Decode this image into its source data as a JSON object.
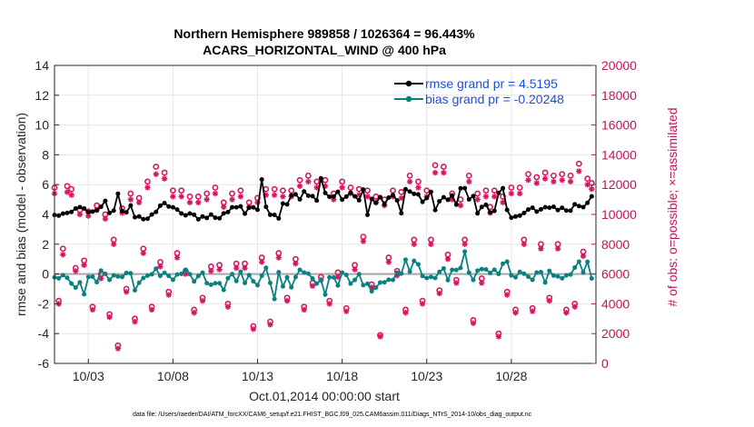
{
  "chart_data": {
    "type": "line",
    "title": "Northern Hemisphere 989858 / 1026364 = 96.443%",
    "subtitle": "ACARS_HORIZONTAL_WIND @ 400 hPa",
    "xlabel": "Oct.01,2014 00:00:00 start",
    "ylabel": "rmse and bias (model - observation)",
    "y2label": "# of obs: o=possible; ×=assimilated",
    "xlim": [
      1,
      33
    ],
    "ylim": [
      -6,
      14
    ],
    "y2lim": [
      0,
      20000
    ],
    "x_ticks": [
      3,
      8,
      13,
      18,
      23,
      28
    ],
    "x_tick_labels": [
      "10/03",
      "10/08",
      "10/13",
      "10/18",
      "10/23",
      "10/28"
    ],
    "y_ticks": [
      "-6",
      "-4",
      "-2",
      "0",
      "2",
      "4",
      "6",
      "8",
      "10",
      "12",
      "14"
    ],
    "y2_ticks": [
      "0",
      "2000",
      "4000",
      "6000",
      "8000",
      "10000",
      "12000",
      "14000",
      "16000",
      "18000",
      "20000"
    ],
    "grid": true,
    "legend": [
      "rmse grand pr = 4.5195",
      "bias grand pr = -0.20248"
    ],
    "legend_position": "top-right",
    "colors": {
      "rmse": "#000000",
      "bias": "#0a8080",
      "obs": "#d6165f",
      "zero_line": "#a6a6a6",
      "axis_left": "#262626",
      "axis_right": "#c0145a",
      "legend_text": "#1a4fe0"
    },
    "series": [
      {
        "name": "rmse",
        "x": [
          1.0,
          1.25,
          1.5,
          1.75,
          2.0,
          2.25,
          2.5,
          2.75,
          3.0,
          3.25,
          3.5,
          3.75,
          4.0,
          4.25,
          4.5,
          4.75,
          5.0,
          5.25,
          5.5,
          5.75,
          6.0,
          6.25,
          6.5,
          6.75,
          7.0,
          7.25,
          7.5,
          7.75,
          8.0,
          8.25,
          8.5,
          8.75,
          9.0,
          9.25,
          9.5,
          9.75,
          10.0,
          10.25,
          10.5,
          10.75,
          11.0,
          11.25,
          11.5,
          11.75,
          12.0,
          12.25,
          12.5,
          12.75,
          13.0,
          13.25,
          13.5,
          13.75,
          14.0,
          14.25,
          14.5,
          14.75,
          15.0,
          15.25,
          15.5,
          15.75,
          16.0,
          16.25,
          16.5,
          16.75,
          17.0,
          17.25,
          17.5,
          17.75,
          18.0,
          18.25,
          18.5,
          18.75,
          19.0,
          19.25,
          19.5,
          19.75,
          20.0,
          20.25,
          20.5,
          20.75,
          21.0,
          21.25,
          21.5,
          21.75,
          22.0,
          22.25,
          22.5,
          22.75,
          23.0,
          23.25,
          23.5,
          23.75,
          24.0,
          24.25,
          24.5,
          24.75,
          25.0,
          25.25,
          25.5,
          25.75,
          26.0,
          26.25,
          26.5,
          26.75,
          27.0,
          27.25,
          27.5,
          27.75,
          28.0,
          28.25,
          28.5,
          28.75,
          29.0,
          29.25,
          29.5,
          29.75,
          30.0,
          30.25,
          30.5,
          30.75,
          31.0,
          31.25,
          31.5,
          31.75,
          32.0,
          32.25,
          32.5,
          32.75
        ],
        "values": [
          3.96,
          3.92,
          4.05,
          4.1,
          4.17,
          4.4,
          4.49,
          4.4,
          4.15,
          4.19,
          4.27,
          4.51,
          4.91,
          4.1,
          4.25,
          5.39,
          4.22,
          4.14,
          4.6,
          3.81,
          3.86,
          3.68,
          3.71,
          3.99,
          4.17,
          4.59,
          4.76,
          4.53,
          4.48,
          4.33,
          4.06,
          3.94,
          4.06,
          3.98,
          3.67,
          3.86,
          3.76,
          3.99,
          3.78,
          3.74,
          4.07,
          4.16,
          4.48,
          4.47,
          4.54,
          4.05,
          4.45,
          4.47,
          4.31,
          6.35,
          4.51,
          3.98,
          3.97,
          3.73,
          4.73,
          4.67,
          5.27,
          5.35,
          5.01,
          5.54,
          5.26,
          5.23,
          4.93,
          6.42,
          5.44,
          5.18,
          5.2,
          5.52,
          4.99,
          5.2,
          5.46,
          5.21,
          4.95,
          5.67,
          3.97,
          5.04,
          4.78,
          5.16,
          4.68,
          5.13,
          5.29,
          4.94,
          4.08,
          5.69,
          5.53,
          5.38,
          5.34,
          4.84,
          5.1,
          5.51,
          4.29,
          4.88,
          5.15,
          4.98,
          5.27,
          4.66,
          5.75,
          5.76,
          5.01,
          5.23,
          4.07,
          4.5,
          4.65,
          4.12,
          4.24,
          5.44,
          5.76,
          4.3,
          3.78,
          3.86,
          3.92,
          4.09,
          4.33,
          4.45,
          4.19,
          4.34,
          4.48,
          4.45,
          4.51,
          4.29,
          4.44,
          4.26,
          4.25,
          4.68,
          4.56,
          4.49,
          4.78,
          5.21
        ]
      },
      {
        "name": "bias",
        "x": [
          1.0,
          1.25,
          1.5,
          1.75,
          2.0,
          2.25,
          2.5,
          2.75,
          3.0,
          3.25,
          3.5,
          3.75,
          4.0,
          4.25,
          4.5,
          4.75,
          5.0,
          5.25,
          5.5,
          5.75,
          6.0,
          6.25,
          6.5,
          6.75,
          7.0,
          7.25,
          7.5,
          7.75,
          8.0,
          8.25,
          8.5,
          8.75,
          9.0,
          9.25,
          9.5,
          9.75,
          10.0,
          10.25,
          10.5,
          10.75,
          11.0,
          11.25,
          11.5,
          11.75,
          12.0,
          12.25,
          12.5,
          12.75,
          13.0,
          13.25,
          13.5,
          13.75,
          14.0,
          14.25,
          14.5,
          14.75,
          15.0,
          15.25,
          15.5,
          15.75,
          16.0,
          16.25,
          16.5,
          16.75,
          17.0,
          17.25,
          17.5,
          17.75,
          18.0,
          18.25,
          18.5,
          18.75,
          19.0,
          19.25,
          19.5,
          19.75,
          20.0,
          20.25,
          20.5,
          20.75,
          21.0,
          21.25,
          21.5,
          21.75,
          22.0,
          22.25,
          22.5,
          22.75,
          23.0,
          23.25,
          23.5,
          23.75,
          24.0,
          24.25,
          24.5,
          24.75,
          25.0,
          25.25,
          25.5,
          25.75,
          26.0,
          26.25,
          26.5,
          26.75,
          27.0,
          27.25,
          27.5,
          27.75,
          28.0,
          28.25,
          28.5,
          28.75,
          29.0,
          29.25,
          29.5,
          29.75,
          30.0,
          30.25,
          30.5,
          30.75,
          31.0,
          31.25,
          31.5,
          31.75,
          32.0,
          32.25,
          32.5,
          32.75
        ],
        "values": [
          -0.22,
          -0.29,
          -0.08,
          -0.25,
          -0.64,
          -0.91,
          -0.56,
          -1.36,
          -0.2,
          -0.18,
          -0.55,
          0.23,
          0.01,
          -0.39,
          -0.09,
          -0.17,
          -0.2,
          0.07,
          0.05,
          -1.09,
          -0.59,
          -0.27,
          -0.11,
          -0.02,
          0.36,
          -0.12,
          0.08,
          -0.13,
          -0.39,
          -0.03,
          0.01,
          0.29,
          -0.01,
          -0.5,
          -0.14,
          0.09,
          -0.61,
          -0.72,
          -0.62,
          -0.62,
          -1.07,
          -0.28,
          -0.01,
          -0.47,
          0.15,
          -0.6,
          -0.08,
          -0.49,
          -0.75,
          -0.12,
          0.42,
          -0.6,
          -1.68,
          0.12,
          -0.83,
          -0.22,
          -0.89,
          -0.21,
          0.28,
          0.1,
          0.03,
          -0.3,
          -0.64,
          -0.42,
          -1.38,
          -0.22,
          -0.23,
          -0.77,
          0.09,
          -0.06,
          -0.64,
          -0.4,
          -0.01,
          -0.75,
          -0.65,
          -1.17,
          -0.91,
          -0.57,
          -0.56,
          -0.38,
          -0.4,
          0.09,
          0.03,
          0.96,
          0.16,
          0.88,
          0.65,
          -0.14,
          -0.27,
          -0.2,
          -0.27,
          0.14,
          0.37,
          -0.41,
          0.28,
          0.27,
          0.41,
          1.51,
          0.09,
          -0.4,
          0.23,
          0.33,
          0.31,
          0.07,
          0.29,
          0.01,
          0.69,
          0.83,
          -0.09,
          -0.22,
          0.14,
          0.02,
          -0.18,
          -0.39,
          0.1,
          0.13,
          -0.57,
          0.21,
          -0.11,
          -0.16,
          -0.29,
          -0.09,
          -0.04,
          0.43,
          0.83,
          0.11,
          0.82,
          -0.3
        ]
      }
    ],
    "obs_possible": {
      "x": [
        1.0,
        1.25,
        1.5,
        1.75,
        2.0,
        2.25,
        2.5,
        2.75,
        3.0,
        3.25,
        3.5,
        3.75,
        4.0,
        4.25,
        4.5,
        4.75,
        5.0,
        5.25,
        5.5,
        5.75,
        6.0,
        6.25,
        6.5,
        6.75,
        7.0,
        7.25,
        7.5,
        7.75,
        8.0,
        8.25,
        8.5,
        8.75,
        9.0,
        9.25,
        9.5,
        9.75,
        10.0,
        10.25,
        10.5,
        10.75,
        11.0,
        11.25,
        11.5,
        11.75,
        12.0,
        12.25,
        12.5,
        12.75,
        13.0,
        13.25,
        13.5,
        13.75,
        14.0,
        14.25,
        14.5,
        14.75,
        15.0,
        15.25,
        15.5,
        15.75,
        16.0,
        16.25,
        16.5,
        16.75,
        17.0,
        17.25,
        17.5,
        17.75,
        18.0,
        18.25,
        18.5,
        18.75,
        19.0,
        19.25,
        19.5,
        19.75,
        20.0,
        20.25,
        20.5,
        20.75,
        21.0,
        21.25,
        21.5,
        21.75,
        22.0,
        22.25,
        22.5,
        22.75,
        23.0,
        23.25,
        23.5,
        23.75,
        24.0,
        24.25,
        24.5,
        24.75,
        25.0,
        25.25,
        25.5,
        25.75,
        26.0,
        26.25,
        26.5,
        26.75,
        27.0,
        27.25,
        27.5,
        27.75,
        28.0,
        28.25,
        28.5,
        28.75,
        29.0,
        29.25,
        29.5,
        29.75,
        30.0,
        30.25,
        30.5,
        30.75,
        31.0,
        31.25,
        31.5,
        31.75,
        32.0,
        32.25,
        32.5,
        32.75
      ],
      "values": [
        11800,
        4200,
        7700,
        11900,
        11700,
        6400,
        10300,
        6900,
        10200,
        3800,
        10600,
        6000,
        10000,
        3300,
        8300,
        1200,
        10400,
        5000,
        11400,
        3000,
        11100,
        7700,
        12200,
        3800,
        13200,
        6800,
        12800,
        4800,
        11600,
        7400,
        11600,
        6200,
        11200,
        3600,
        11200,
        4400,
        11400,
        6500,
        11800,
        6600,
        10800,
        4000,
        11400,
        6700,
        11600,
        6700,
        10800,
        2500,
        11100,
        7100,
        11700,
        2800,
        11700,
        7400,
        11600,
        4400,
        11600,
        7000,
        12300,
        3800,
        12600,
        5400,
        12200,
        5800,
        12300,
        4200,
        11400,
        6100,
        12200,
        3700,
        11800,
        6600,
        11700,
        8500,
        11600,
        5300,
        11200,
        1900,
        11000,
        7100,
        11600,
        6200,
        11500,
        3600,
        12600,
        8300,
        12200,
        4200,
        11600,
        8300,
        13300,
        4900,
        13200,
        7300,
        11400,
        5600,
        11000,
        8300,
        12600,
        2900,
        11400,
        5700,
        11600,
        10500,
        11600,
        2000,
        11200,
        4800,
        11800,
        3600,
        11800,
        8300,
        12700,
        3700,
        12500,
        8000,
        12800,
        4400,
        12600,
        8000,
        12700,
        3600,
        12600,
        4000,
        13400,
        7500,
        12400,
        12100
      ]
    },
    "obs_assimilated": {
      "x": [
        1.0,
        1.25,
        1.5,
        1.75,
        2.0,
        2.25,
        2.5,
        2.75,
        3.0,
        3.25,
        3.5,
        3.75,
        4.0,
        4.25,
        4.5,
        4.75,
        5.0,
        5.25,
        5.5,
        5.75,
        6.0,
        6.25,
        6.5,
        6.75,
        7.0,
        7.25,
        7.5,
        7.75,
        8.0,
        8.25,
        8.5,
        8.75,
        9.0,
        9.25,
        9.5,
        9.75,
        10.0,
        10.25,
        10.5,
        10.75,
        11.0,
        11.25,
        11.5,
        11.75,
        12.0,
        12.25,
        12.5,
        12.75,
        13.0,
        13.25,
        13.5,
        13.75,
        14.0,
        14.25,
        14.5,
        14.75,
        15.0,
        15.25,
        15.5,
        15.75,
        16.0,
        16.25,
        16.5,
        16.75,
        17.0,
        17.25,
        17.5,
        17.75,
        18.0,
        18.25,
        18.5,
        18.75,
        19.0,
        19.25,
        19.5,
        19.75,
        20.0,
        20.25,
        20.5,
        20.75,
        21.0,
        21.25,
        21.5,
        21.75,
        22.0,
        22.25,
        22.5,
        22.75,
        23.0,
        23.25,
        23.5,
        23.75,
        24.0,
        24.25,
        24.5,
        24.75,
        25.0,
        25.25,
        25.5,
        25.75,
        26.0,
        26.25,
        26.5,
        26.75,
        27.0,
        27.25,
        27.5,
        27.75,
        28.0,
        28.25,
        28.5,
        28.75,
        29.0,
        29.25,
        29.5,
        29.75,
        30.0,
        30.25,
        30.5,
        30.75,
        31.0,
        31.25,
        31.5,
        31.75,
        32.0,
        32.25,
        32.5,
        32.75
      ],
      "values": [
        11400,
        4000,
        7300,
        11500,
        11300,
        6200,
        10000,
        6600,
        9900,
        3600,
        10300,
        5700,
        9700,
        3100,
        8000,
        1000,
        10100,
        4800,
        11000,
        2800,
        10800,
        7400,
        11800,
        3600,
        12700,
        6500,
        12400,
        4600,
        11200,
        7100,
        11200,
        6000,
        10800,
        3400,
        10800,
        4200,
        11000,
        6200,
        11400,
        6300,
        10500,
        3800,
        11000,
        6400,
        11200,
        6400,
        10500,
        2300,
        10800,
        6800,
        11300,
        2600,
        11300,
        7100,
        11200,
        4200,
        11200,
        6700,
        11900,
        3600,
        12200,
        5200,
        11800,
        5600,
        11900,
        4000,
        11000,
        5800,
        11800,
        3500,
        11400,
        6300,
        11300,
        8200,
        11200,
        5100,
        10800,
        1800,
        10600,
        6800,
        11200,
        5900,
        11100,
        3400,
        12200,
        8000,
        11800,
        4000,
        11200,
        8000,
        12800,
        4700,
        12800,
        7000,
        11000,
        5400,
        10600,
        8000,
        12200,
        2700,
        11000,
        5400,
        11200,
        10100,
        11200,
        1800,
        10800,
        4600,
        11400,
        3400,
        11400,
        8000,
        12300,
        3500,
        12100,
        7700,
        12400,
        4200,
        12200,
        7700,
        12300,
        3400,
        12200,
        3800,
        12900,
        7200,
        12000,
        11700
      ]
    },
    "footer_note": "data file: /Users/raeder/DAI/ATM_forcXX/CAM6_setup/f.e21.FHIST_BGC.f09_025.CAM6assim.011/Diags_NTrS_2014-10/obs_diag_output.nc"
  }
}
